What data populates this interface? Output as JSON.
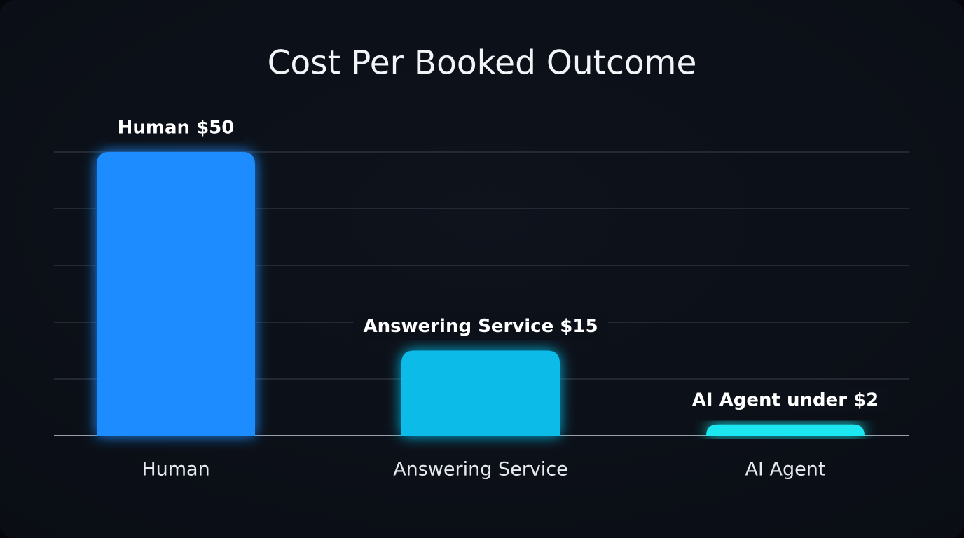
{
  "chart_data": {
    "type": "bar",
    "title": "Cost Per Booked Outcome",
    "categories": [
      "Human",
      "Answering Service",
      "AI Agent"
    ],
    "values": [
      50,
      15,
      2
    ],
    "value_labels": [
      "Human $50",
      "Answering Service $15",
      "AI Agent under $2"
    ],
    "colors": [
      "#1a8cff",
      "#0bbbe8",
      "#1ee6f0"
    ],
    "ylim": [
      0,
      50
    ],
    "yticks": [
      0,
      10,
      20,
      30,
      40,
      50
    ],
    "grid": true
  }
}
